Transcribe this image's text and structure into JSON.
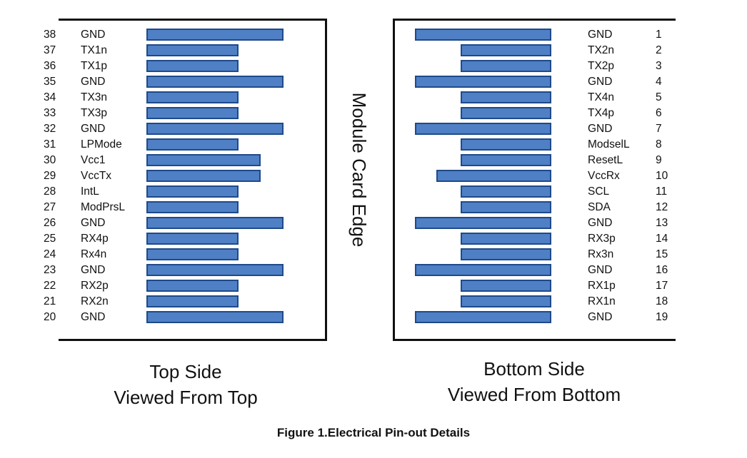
{
  "edge_label": "Module Card Edge",
  "top_side": {
    "caption_line1": "Top Side",
    "caption_line2": "Viewed From Top",
    "pins": [
      {
        "number": "38",
        "name": "GND",
        "pad": "long"
      },
      {
        "number": "37",
        "name": "TX1n",
        "pad": "short"
      },
      {
        "number": "36",
        "name": "TX1p",
        "pad": "short"
      },
      {
        "number": "35",
        "name": "GND",
        "pad": "long"
      },
      {
        "number": "34",
        "name": "TX3n",
        "pad": "short"
      },
      {
        "number": "33",
        "name": "TX3p",
        "pad": "short"
      },
      {
        "number": "32",
        "name": "GND",
        "pad": "long"
      },
      {
        "number": "31",
        "name": "LPMode",
        "pad": "short"
      },
      {
        "number": "30",
        "name": "Vcc1",
        "pad": "medium"
      },
      {
        "number": "29",
        "name": "VccTx",
        "pad": "medium"
      },
      {
        "number": "28",
        "name": "IntL",
        "pad": "short"
      },
      {
        "number": "27",
        "name": "ModPrsL",
        "pad": "short"
      },
      {
        "number": "26",
        "name": "GND",
        "pad": "long"
      },
      {
        "number": "25",
        "name": "RX4p",
        "pad": "short"
      },
      {
        "number": "24",
        "name": "Rx4n",
        "pad": "short"
      },
      {
        "number": "23",
        "name": "GND",
        "pad": "long"
      },
      {
        "number": "22",
        "name": "RX2p",
        "pad": "short"
      },
      {
        "number": "21",
        "name": "RX2n",
        "pad": "short"
      },
      {
        "number": "20",
        "name": "GND",
        "pad": "long"
      }
    ]
  },
  "bottom_side": {
    "caption_line1": "Bottom Side",
    "caption_line2": "Viewed From Bottom",
    "pins": [
      {
        "number": "1",
        "name": "GND",
        "pad": "long"
      },
      {
        "number": "2",
        "name": "TX2n",
        "pad": "short"
      },
      {
        "number": "3",
        "name": "TX2p",
        "pad": "short"
      },
      {
        "number": "4",
        "name": "GND",
        "pad": "long"
      },
      {
        "number": "5",
        "name": "TX4n",
        "pad": "short"
      },
      {
        "number": "6",
        "name": "TX4p",
        "pad": "short"
      },
      {
        "number": "7",
        "name": "GND",
        "pad": "long"
      },
      {
        "number": "8",
        "name": "ModselL",
        "pad": "short"
      },
      {
        "number": "9",
        "name": "ResetL",
        "pad": "short"
      },
      {
        "number": "10",
        "name": "VccRx",
        "pad": "medium"
      },
      {
        "number": "11",
        "name": "SCL",
        "pad": "short"
      },
      {
        "number": "12",
        "name": "SDA",
        "pad": "short"
      },
      {
        "number": "13",
        "name": "GND",
        "pad": "long"
      },
      {
        "number": "14",
        "name": "RX3p",
        "pad": "short"
      },
      {
        "number": "15",
        "name": "Rx3n",
        "pad": "short"
      },
      {
        "number": "16",
        "name": "GND",
        "pad": "long"
      },
      {
        "number": "17",
        "name": "RX1p",
        "pad": "short"
      },
      {
        "number": "18",
        "name": "RX1n",
        "pad": "short"
      },
      {
        "number": "19",
        "name": "GND",
        "pad": "long"
      }
    ]
  },
  "figure_title": "Figure 1.Electrical Pin-out Details",
  "colors": {
    "pad_fill": "#4f7fc4",
    "pad_border": "#1f4a8a",
    "lines": "#111111"
  }
}
